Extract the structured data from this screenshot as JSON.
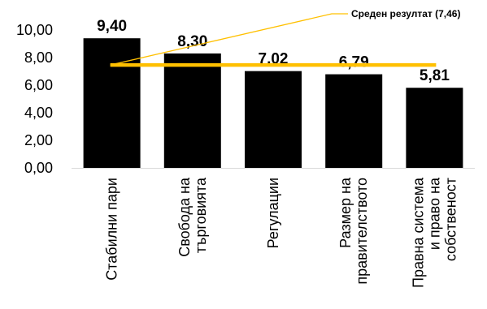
{
  "chart_data": {
    "type": "bar",
    "categories": [
      [
        "Стабилни пари"
      ],
      [
        "Свобода на",
        "търговията"
      ],
      [
        "Регулации"
      ],
      [
        "Размер на",
        "правителството"
      ],
      [
        "Правна система",
        "и право на",
        "собственост"
      ]
    ],
    "values": [
      9.4,
      8.3,
      7.02,
      6.79,
      5.81
    ],
    "data_labels": [
      "9,40",
      "8,30",
      "7,02",
      "6,79",
      "5,81"
    ],
    "ylim": [
      0,
      10
    ],
    "yticks": [
      0,
      2,
      4,
      6,
      8,
      10
    ],
    "ytick_labels": [
      "0,00",
      "2,00",
      "4,00",
      "6,00",
      "8,00",
      "10,00"
    ],
    "bar_color": "#000000",
    "reference_line": {
      "value": 7.46,
      "label": "Среден резултат (7,46)",
      "color": "#FFC000"
    },
    "grid": false,
    "legend": "none"
  }
}
